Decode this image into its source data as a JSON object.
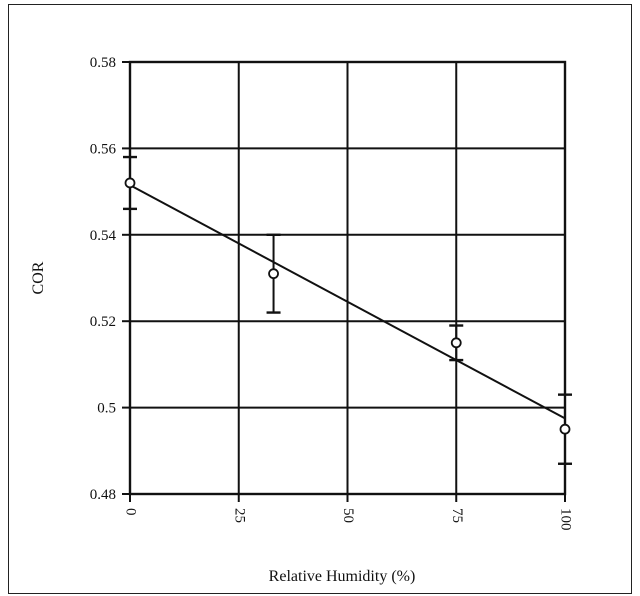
{
  "chart_data": {
    "type": "scatter",
    "xlabel": "Relative Humidity (%)",
    "ylabel": "COR",
    "xlim": [
      0,
      100
    ],
    "ylim": [
      0.48,
      0.58
    ],
    "x_ticks": [
      0,
      25,
      50,
      75,
      100
    ],
    "x_tick_labels": [
      "0",
      "25",
      "50",
      "75",
      "100"
    ],
    "y_ticks": [
      0.48,
      0.5,
      0.52,
      0.54,
      0.56,
      0.58
    ],
    "y_tick_labels": [
      "0.48",
      "0.5",
      "0.52",
      "0.54",
      "0.56",
      "0.58"
    ],
    "grid": true,
    "legend": "none",
    "points": [
      {
        "x": 0,
        "y": 0.552,
        "err_low": 0.546,
        "err_high": 0.558
      },
      {
        "x": 33,
        "y": 0.531,
        "err_low": 0.522,
        "err_high": 0.54
      },
      {
        "x": 75,
        "y": 0.515,
        "err_low": 0.511,
        "err_high": 0.519
      },
      {
        "x": 100,
        "y": 0.495,
        "err_low": 0.487,
        "err_high": 0.503
      }
    ],
    "trendline": {
      "x": [
        0,
        100
      ],
      "y": [
        0.5515,
        0.4975
      ]
    }
  }
}
